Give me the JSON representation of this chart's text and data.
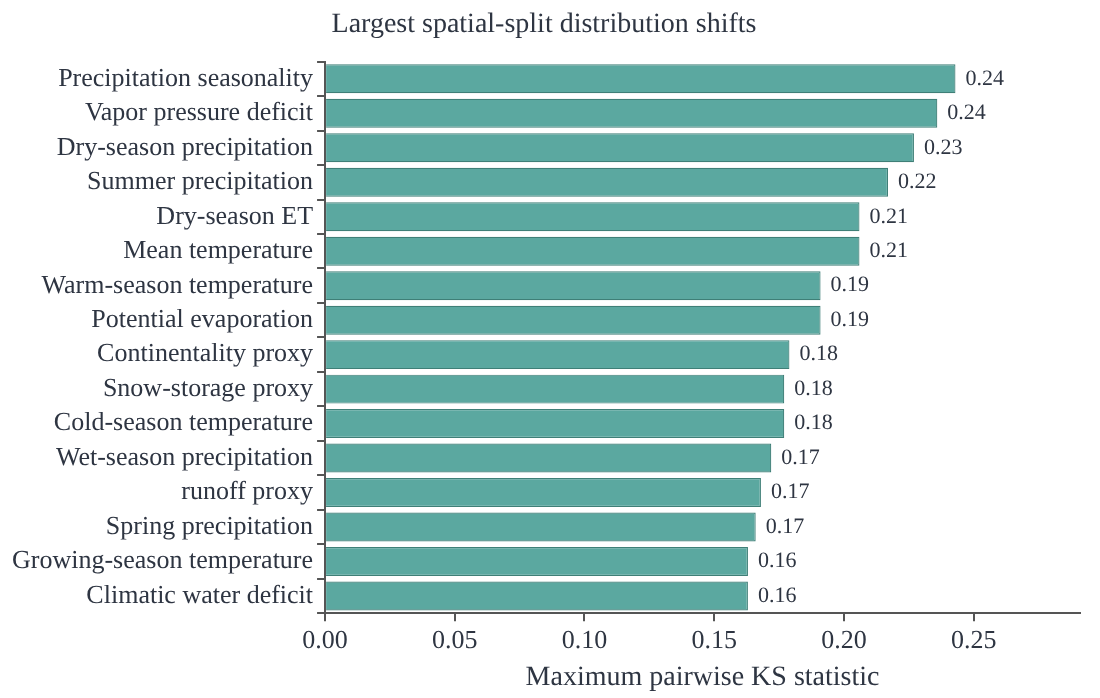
{
  "chart_data": {
    "type": "bar",
    "orientation": "horizontal",
    "title": "Largest spatial-split distribution shifts",
    "xlabel": "Maximum pairwise KS statistic",
    "categories": [
      "Precipitation seasonality",
      "Vapor pressure deficit",
      "Dry-season precipitation",
      "Summer precipitation",
      "Dry-season ET",
      "Mean temperature",
      "Warm-season temperature",
      "Potential evaporation",
      "Continentality proxy",
      "Snow-storage proxy",
      "Cold-season temperature",
      "Wet-season precipitation",
      "runoff proxy",
      "Spring precipitation",
      "Growing-season temperature",
      "Climatic water deficit"
    ],
    "values": [
      0.243,
      0.236,
      0.227,
      0.217,
      0.206,
      0.206,
      0.191,
      0.191,
      0.179,
      0.177,
      0.177,
      0.172,
      0.168,
      0.166,
      0.163,
      0.163
    ],
    "value_labels": [
      "0.24",
      "0.24",
      "0.23",
      "0.22",
      "0.21",
      "0.21",
      "0.19",
      "0.19",
      "0.18",
      "0.18",
      "0.18",
      "0.17",
      "0.17",
      "0.17",
      "0.16",
      "0.16"
    ],
    "color": "#5ba8a0",
    "xlim": [
      0,
      0.291
    ],
    "xticks": [
      {
        "value": 0,
        "label": "0.00"
      },
      {
        "value": 0.05,
        "label": "0.05"
      },
      {
        "value": 0.1,
        "label": "0.10"
      },
      {
        "value": 0.15,
        "label": "0.15"
      },
      {
        "value": 0.2,
        "label": "0.20"
      },
      {
        "value": 0.25,
        "label": "0.25"
      }
    ],
    "grid": false,
    "legend": false
  }
}
